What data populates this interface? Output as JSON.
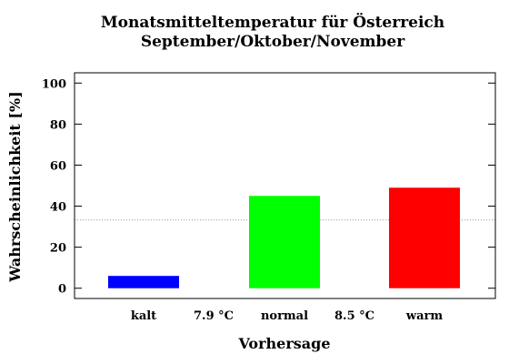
{
  "chart_data": {
    "type": "bar",
    "title": "Monatsmitteltemperatur für Österreich",
    "subtitle": "September/Oktober/November",
    "xlabel": "Vorhersage",
    "ylabel": "Wahrscheinlichkeit [%]",
    "ylim": [
      -5,
      105
    ],
    "yticks": [
      0,
      20,
      40,
      60,
      80,
      100
    ],
    "categories": [
      "kalt",
      "normal",
      "warm"
    ],
    "values": [
      6,
      45,
      49
    ],
    "colors": [
      "#0000ff",
      "#00ff00",
      "#ff0000"
    ],
    "thresholds": [
      "7.9 °C",
      "8.5 °C"
    ],
    "reference_line": 33.3,
    "grid": false,
    "legend": "none"
  }
}
